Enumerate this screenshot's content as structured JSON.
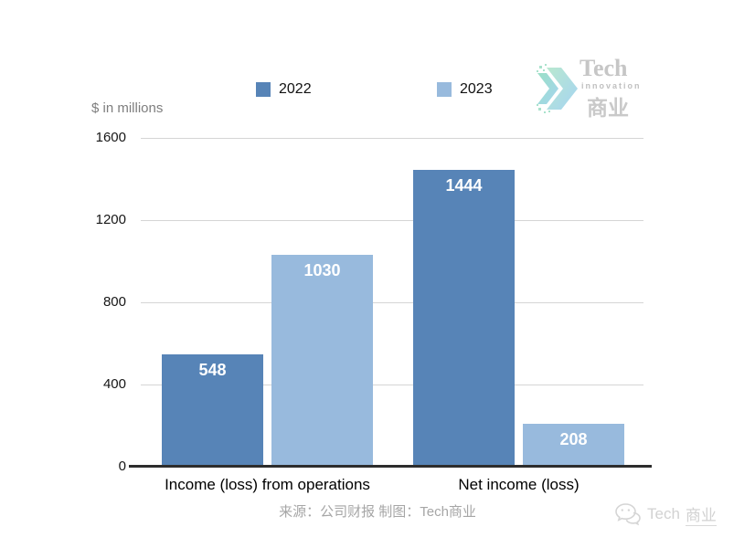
{
  "axis_note": "$ in millions",
  "chart_data": {
    "type": "bar",
    "title": "",
    "unit_note": "$ in millions",
    "categories": [
      "Income (loss) from operations",
      "Net income (loss)"
    ],
    "series": [
      {
        "name": "2022",
        "color": "#5784b7",
        "values": [
          548,
          1444
        ]
      },
      {
        "name": "2023",
        "color": "#98badd",
        "values": [
          1030,
          208
        ]
      }
    ],
    "ylim": [
      0,
      1600
    ],
    "yticks": [
      0,
      400,
      800,
      1200,
      1600
    ],
    "grid": "horizontal",
    "legend_position": "top",
    "value_label_style": "white bold inside bar top",
    "baseline_color": "#2d2d2d"
  },
  "footer": {
    "text": "来源：公司财报 制图：Tech商业"
  },
  "logo": {
    "name": "Tech",
    "sub": "innovation",
    "cn": "商业"
  },
  "watermark": {
    "prefix": "Tech",
    "suffix": "商业"
  }
}
